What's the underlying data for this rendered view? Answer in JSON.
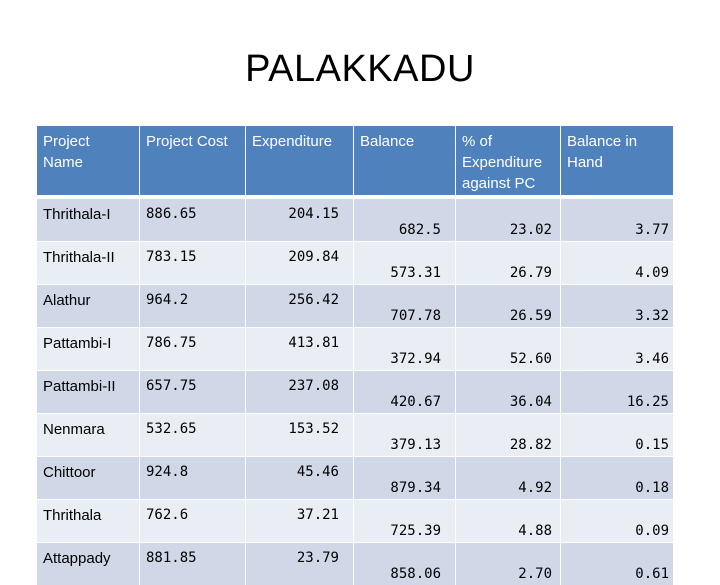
{
  "title": "PALAKKADU",
  "headers": [
    "Project Name",
    "Project Cost",
    "Expenditure",
    "Balance",
    "% of Expenditure against PC",
    "Balance in Hand"
  ],
  "rows": [
    [
      "Thrithala-I",
      "886.65",
      "204.15",
      "682.5",
      "23.02",
      "3.77"
    ],
    [
      "Thrithala-II",
      "783.15",
      "209.84",
      "573.31",
      "26.79",
      "4.09"
    ],
    [
      "Alathur",
      "964.2",
      "256.42",
      "707.78",
      "26.59",
      "3.32"
    ],
    [
      "Pattambi-I",
      "786.75",
      "413.81",
      "372.94",
      "52.60",
      "3.46"
    ],
    [
      "Pattambi-II",
      "657.75",
      "237.08",
      "420.67",
      "36.04",
      "16.25"
    ],
    [
      "Nenmara",
      "532.65",
      "153.52",
      "379.13",
      "28.82",
      "0.15"
    ],
    [
      "Chittoor",
      "924.8",
      "45.46",
      "879.34",
      "4.92",
      "0.18"
    ],
    [
      "Thrithala",
      "762.6",
      "37.21",
      "725.39",
      "4.88",
      "0.09"
    ],
    [
      "Attappady",
      "881.85",
      "23.79",
      "858.06",
      "2.70",
      "0.61"
    ]
  ],
  "colors": {
    "header_bg": "#4f81bd",
    "row_odd": "#d0d8e8",
    "row_even": "#e9edf4"
  }
}
